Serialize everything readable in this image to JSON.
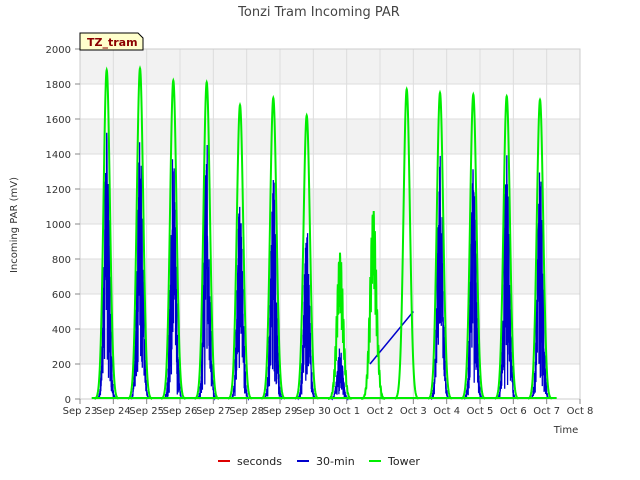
{
  "chart_data": {
    "type": "line",
    "title": "Tonzi Tram Incoming PAR",
    "badge": "TZ_tram",
    "xlabel": "Time",
    "ylabel": "Incoming PAR (mV)",
    "ylim": [
      0,
      2000
    ],
    "yticks": [
      0,
      200,
      400,
      600,
      800,
      1000,
      1200,
      1400,
      1600,
      1800,
      2000
    ],
    "xlim": [
      0,
      15
    ],
    "xticks": [
      {
        "pos": 0,
        "label": "Sep 23"
      },
      {
        "pos": 1,
        "label": "Sep 24"
      },
      {
        "pos": 2,
        "label": "Sep 25"
      },
      {
        "pos": 3,
        "label": "Sep 26"
      },
      {
        "pos": 4,
        "label": "Sep 27"
      },
      {
        "pos": 5,
        "label": "Sep 28"
      },
      {
        "pos": 6,
        "label": "Sep 29"
      },
      {
        "pos": 7,
        "label": "Sep 30"
      },
      {
        "pos": 8,
        "label": "Oct 1"
      },
      {
        "pos": 9,
        "label": "Oct 2"
      },
      {
        "pos": 10,
        "label": "Oct 3"
      },
      {
        "pos": 11,
        "label": "Oct 4"
      },
      {
        "pos": 12,
        "label": "Oct 5"
      },
      {
        "pos": 13,
        "label": "Oct 6"
      },
      {
        "pos": 14,
        "label": "Oct 7"
      },
      {
        "pos": 15,
        "label": "Oct 8"
      }
    ],
    "grid": true,
    "legend": "bottom",
    "series": [
      {
        "name": "seconds",
        "color": "#dd0000",
        "daily_peaks": []
      },
      {
        "name": "30-min",
        "color": "#0000cc",
        "daily_peaks": [
          {
            "day": 0.8,
            "peak": 1550
          },
          {
            "day": 1.8,
            "peak": 1580
          },
          {
            "day": 2.8,
            "peak": 1490
          },
          {
            "day": 3.8,
            "peak": 1490
          },
          {
            "day": 4.8,
            "peak": 1200
          },
          {
            "day": 5.8,
            "peak": 1300
          },
          {
            "day": 6.8,
            "peak": 1020
          },
          {
            "day": 7.8,
            "peak": 300
          },
          {
            "day": 10.8,
            "peak": 1410
          },
          {
            "day": 11.8,
            "peak": 1400
          },
          {
            "day": 12.8,
            "peak": 1400
          },
          {
            "day": 13.8,
            "peak": 1380
          }
        ],
        "gap_line": [
          [
            8.7,
            200
          ],
          [
            10.0,
            500
          ]
        ]
      },
      {
        "name": "Tower",
        "color": "#00ee00",
        "daily_peaks": [
          {
            "day": 0.8,
            "peak": 1880
          },
          {
            "day": 1.8,
            "peak": 1890
          },
          {
            "day": 2.8,
            "peak": 1820
          },
          {
            "day": 3.8,
            "peak": 1810
          },
          {
            "day": 4.8,
            "peak": 1680
          },
          {
            "day": 5.8,
            "peak": 1720
          },
          {
            "day": 6.8,
            "peak": 1620
          },
          {
            "day": 7.8,
            "peak": 840
          },
          {
            "day": 8.8,
            "peak": 1090
          },
          {
            "day": 9.8,
            "peak": 1770
          },
          {
            "day": 10.8,
            "peak": 1750
          },
          {
            "day": 11.8,
            "peak": 1740
          },
          {
            "day": 12.8,
            "peak": 1730
          },
          {
            "day": 13.8,
            "peak": 1710
          }
        ]
      }
    ]
  }
}
